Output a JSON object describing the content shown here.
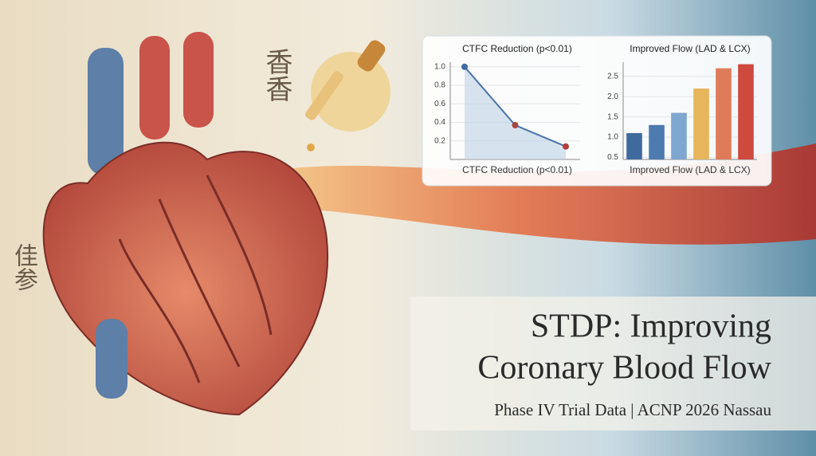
{
  "chart_data": [
    {
      "type": "line",
      "title": "CTFC Reduction (p<0.01)",
      "xlabel": "CTFC Reduction (p<0.01)",
      "values": [
        1.0,
        0.37,
        0.14
      ],
      "color": "#4a73a8",
      "marker_colors": [
        "#3d6aa3",
        "#a8453d",
        "#b83a3a"
      ],
      "ylim": [
        0,
        1.05
      ],
      "yticks": [
        0.2,
        0.4,
        0.6,
        0.8,
        {
          "value": 1,
          "label": "1.0"
        }
      ],
      "grid": true
    },
    {
      "type": "bar",
      "title": "Improved Flow (LAD & LCX)",
      "xlabel": "Improved Flow (LAD & LCX)",
      "values": [
        1.1,
        1.3,
        1.6,
        2.2,
        2.7,
        2.8
      ],
      "colors": [
        "#3f6a9e",
        "#4d7bb0",
        "#7fa6cf",
        "#e6b55c",
        "#e07b5a",
        "#cf4a3e"
      ],
      "ylim": [
        0.45,
        2.85
      ],
      "yticks": [
        0.5,
        {
          "value": 1,
          "label": "1.0"
        },
        1.5,
        {
          "value": 2,
          "label": "2.0"
        },
        2.5
      ],
      "grid": true
    }
  ],
  "banner": {
    "title_line1": "STDP: Improving",
    "title_line2": "Coronary Blood Flow",
    "subtitle": "Phase IV Trial Data | ACNP 2026 Nassau"
  },
  "calligraphy": [
    "香香",
    "佳参"
  ]
}
